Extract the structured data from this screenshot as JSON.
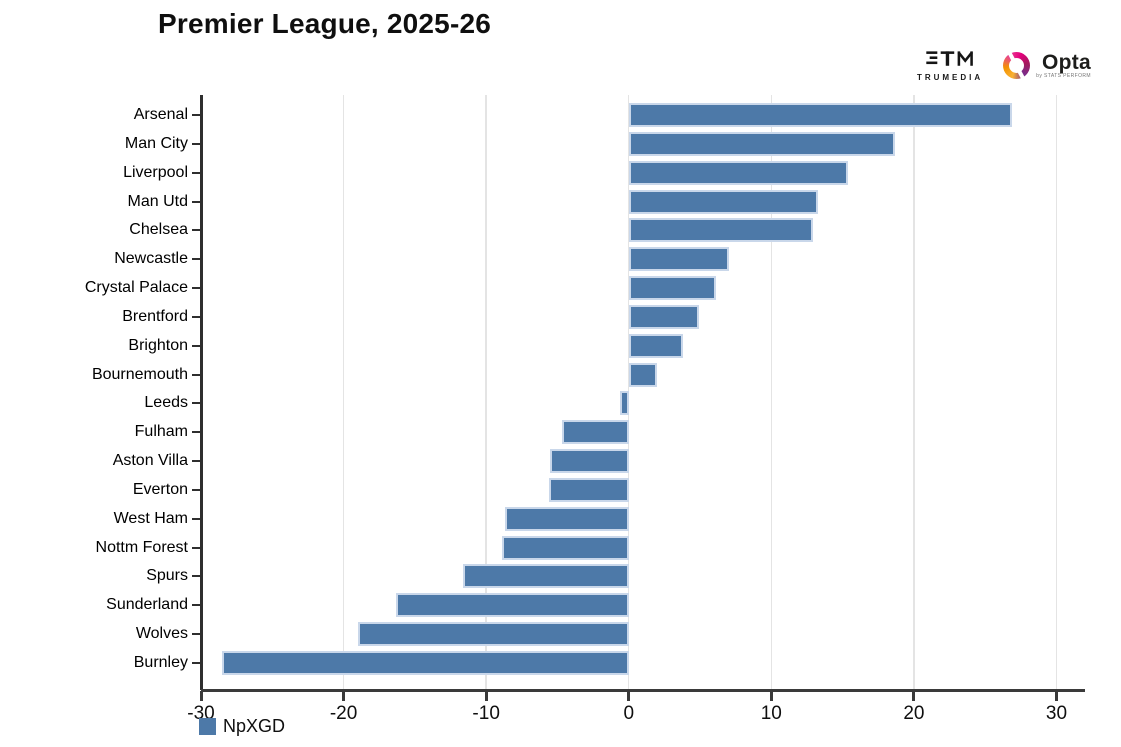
{
  "title": "Premier League, 2025-26",
  "branding": {
    "trumedia_label": "TRUMEDIA",
    "opta_label": "Opta",
    "opta_sub_label": "by STATS PERFORM"
  },
  "legend": {
    "label": "NpXGD",
    "swatch_color": "#4d79a8"
  },
  "chart_data": {
    "type": "bar",
    "orientation": "horizontal",
    "title": "Premier League, 2025-26",
    "series_name": "NpXGD",
    "categories": [
      "Arsenal",
      "Man City",
      "Liverpool",
      "Man Utd",
      "Chelsea",
      "Newcastle",
      "Crystal Palace",
      "Brentford",
      "Brighton",
      "Bournemouth",
      "Leeds",
      "Fulham",
      "Aston Villa",
      "Everton",
      "West Ham",
      "Nottm Forest",
      "Spurs",
      "Sunderland",
      "Wolves",
      "Burnley"
    ],
    "values": [
      26.9,
      18.7,
      15.4,
      13.3,
      12.9,
      7,
      6.1,
      4.9,
      3.8,
      2,
      -0.6,
      -4.7,
      -5.5,
      -5.6,
      -8.7,
      -8.9,
      -11.6,
      -16.3,
      -19,
      -28.5
    ],
    "xlabel": "",
    "ylabel": "",
    "xlim": [
      -30,
      32
    ],
    "xticks": [
      -30,
      -20,
      -10,
      0,
      10,
      20,
      30
    ],
    "grid": true,
    "legend_position": "bottom-left",
    "bar_color": "#4d79a8",
    "bar_border_color": "#c9d7ea",
    "axis_color": "#3a3a3a",
    "gridline_color": "#e4e4e4"
  }
}
